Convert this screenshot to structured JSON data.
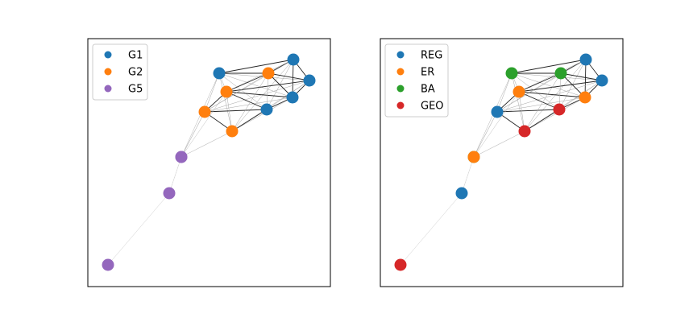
{
  "figure": {
    "panels": [
      {
        "legend": [
          {
            "label": "G1",
            "color": "#1f77b4"
          },
          {
            "label": "G2",
            "color": "#ff7f0e"
          },
          {
            "label": "G5",
            "color": "#9467bd"
          }
        ],
        "node_groups": [
          "G1",
          "G1",
          "G1",
          "G1",
          "G1",
          "G2",
          "G2",
          "G2",
          "G2",
          "G5",
          "G5",
          "G5",
          "G5"
        ]
      },
      {
        "legend": [
          {
            "label": "REG",
            "color": "#1f77b4"
          },
          {
            "label": "ER",
            "color": "#ff7f0e"
          },
          {
            "label": "BA",
            "color": "#2ca02c"
          },
          {
            "label": "GEO",
            "color": "#d62728"
          }
        ],
        "node_groups": [
          "BA",
          "REG",
          "REG",
          "ER",
          "GEO",
          "BA",
          "ER",
          "REG",
          "GEO",
          "BA",
          "ER",
          "REG",
          "GEO"
        ]
      }
    ],
    "node_count": 13
  }
}
